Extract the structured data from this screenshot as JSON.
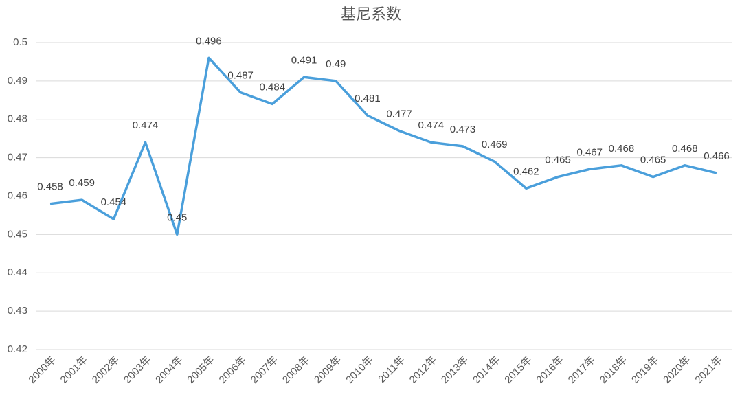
{
  "chart_data": {
    "type": "line",
    "title": "基尼系数",
    "categories": [
      "2000年",
      "2001年",
      "2002年",
      "2003年",
      "2004年",
      "2005年",
      "2006年",
      "2007年",
      "2008年",
      "2009年",
      "2010年",
      "2011年",
      "2012年",
      "2013年",
      "2014年",
      "2015年",
      "2016年",
      "2017年",
      "2018年",
      "2019年",
      "2020年",
      "2021年"
    ],
    "series": [
      {
        "name": "基尼系数",
        "color": "#4a9fdb",
        "values": [
          0.458,
          0.459,
          0.454,
          0.474,
          0.45,
          0.496,
          0.487,
          0.484,
          0.491,
          0.49,
          0.481,
          0.477,
          0.474,
          0.473,
          0.469,
          0.462,
          0.465,
          0.467,
          0.468,
          0.465,
          0.468,
          0.466
        ]
      }
    ],
    "ylim": [
      0.42,
      0.5
    ],
    "yticks": [
      0.42,
      0.43,
      0.44,
      0.45,
      0.46,
      0.47,
      0.48,
      0.49,
      0.5
    ],
    "grid": true
  }
}
